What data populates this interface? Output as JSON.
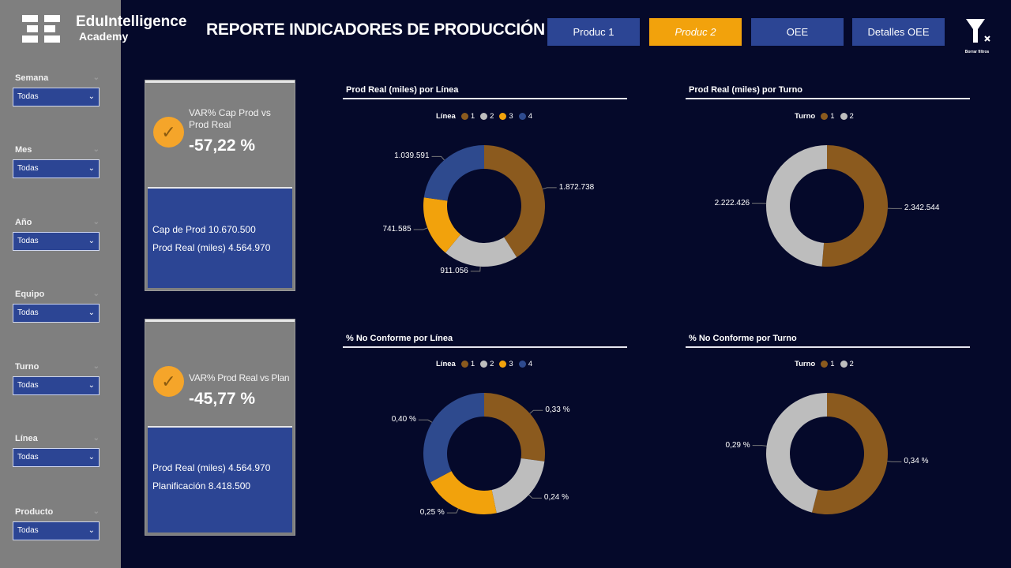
{
  "brand": {
    "name": "EduIntelligence",
    "sub": "Academy"
  },
  "header": {
    "title": "REPORTE INDICADORES DE PRODUCCIÓN",
    "nav": [
      "Produc 1",
      "Produc 2",
      "OEE",
      "Detalles OEE"
    ],
    "active_nav": "Produc 2",
    "clear_filters": "Borrar filtros"
  },
  "filters": [
    {
      "label": "Semana",
      "value": "Todas"
    },
    {
      "label": "Mes",
      "value": "Todas"
    },
    {
      "label": "Año",
      "value": "Todas"
    },
    {
      "label": "Equipo",
      "value": "Todas"
    },
    {
      "label": "Turno",
      "value": "Todas"
    },
    {
      "label": "Línea",
      "value": "Todas"
    },
    {
      "label": "Producto",
      "value": "Todas"
    }
  ],
  "kpis": [
    {
      "title": "VAR% Cap Prod vs Prod Real",
      "value": "-57,22 %",
      "lines": [
        "Cap de Prod 10.670.500",
        "Prod Real (miles) 4.564.970"
      ]
    },
    {
      "title": "VAR% Prod Real vs Plan",
      "value": "-45,77 %",
      "lines": [
        "Prod Real (miles) 4.564.970",
        "Planificación 8.418.500"
      ]
    }
  ],
  "colors": {
    "1": "#8b5a1e",
    "2": "#bdbdbd",
    "3": "#f2a20c",
    "4": "#2e4a8e",
    "bg": "#05092a",
    "accent": "#f2a20c",
    "panel": "#2c4594"
  },
  "chart_data": [
    {
      "type": "donut",
      "title": "Prod Real (miles) por Línea",
      "legend_title": "Línea",
      "categories": [
        "1",
        "2",
        "3",
        "4"
      ],
      "values": [
        1872738,
        911056,
        741585,
        1039591
      ],
      "labels": [
        "1.872.738",
        "911.056",
        "741.585",
        "1.039.591"
      ]
    },
    {
      "type": "donut",
      "title": "Prod Real (miles) por Turno",
      "legend_title": "Turno",
      "categories": [
        "1",
        "2"
      ],
      "values": [
        2342544,
        2222426
      ],
      "labels": [
        "2.342.544",
        "2.222.426"
      ]
    },
    {
      "type": "donut",
      "title": "% No Conforme por Línea",
      "legend_title": "Línea",
      "categories": [
        "1",
        "2",
        "3",
        "4"
      ],
      "values": [
        0.33,
        0.24,
        0.25,
        0.4
      ],
      "labels": [
        "0,33 %",
        "0,24 %",
        "0,25 %",
        "0,40 %"
      ]
    },
    {
      "type": "donut",
      "title": "% No Conforme por Turno",
      "legend_title": "Turno",
      "categories": [
        "1",
        "2"
      ],
      "values": [
        0.34,
        0.29
      ],
      "labels": [
        "0,34 %",
        "0,29 %"
      ]
    }
  ]
}
